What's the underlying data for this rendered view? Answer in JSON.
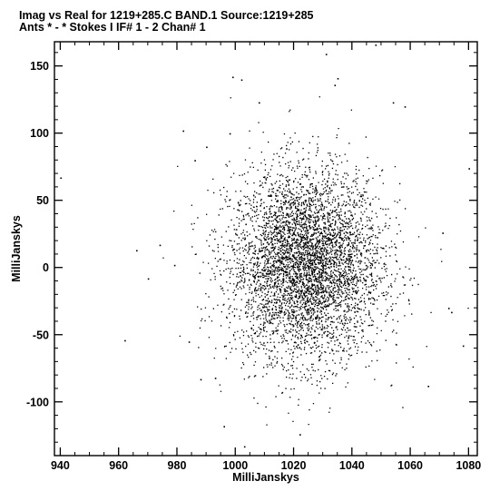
{
  "chart_data": {
    "type": "scatter",
    "title": "Imag vs Real for 1219+285.C BAND.1   Source:1219+285",
    "subtitle": "Ants * - *     Stokes I   IF# 1 - 2   Chan# 1",
    "xlabel": "MilliJanskys",
    "ylabel": "MilliJanskys",
    "xlim": [
      938,
      1083
    ],
    "ylim": [
      -140,
      168
    ],
    "xticks": [
      940,
      960,
      980,
      1000,
      1020,
      1040,
      1060,
      1080
    ],
    "yticks": [
      -100,
      -50,
      0,
      50,
      100,
      150
    ],
    "grid": false,
    "marker_color": "#000000",
    "cloud": {
      "center": [
        1024,
        2
      ],
      "spread": [
        13,
        35
      ],
      "count": 5000,
      "note": "dense elliptical point cloud; individual points too numerous to enumerate"
    },
    "points": [
      [
        940,
        67
      ],
      [
        962,
        -54
      ],
      [
        966,
        13
      ],
      [
        970,
        -8
      ],
      [
        974,
        17
      ],
      [
        979,
        2
      ],
      [
        982,
        102
      ],
      [
        984,
        -55
      ],
      [
        986,
        80
      ],
      [
        988,
        -83
      ],
      [
        990,
        90
      ],
      [
        993,
        -82
      ],
      [
        996,
        -118
      ],
      [
        998,
        100
      ],
      [
        999,
        142
      ],
      [
        1002,
        140
      ],
      [
        1003,
        -133
      ],
      [
        1008,
        123
      ],
      [
        1022,
        -124
      ],
      [
        1031,
        159
      ],
      [
        1034,
        136
      ],
      [
        1035,
        141
      ],
      [
        1048,
        166
      ],
      [
        1054,
        123
      ],
      [
        1058,
        120
      ],
      [
        1066,
        -88
      ],
      [
        1071,
        26
      ],
      [
        1073,
        -30
      ],
      [
        1074,
        -33
      ],
      [
        1078,
        -58
      ],
      [
        1080,
        74
      ]
    ]
  }
}
